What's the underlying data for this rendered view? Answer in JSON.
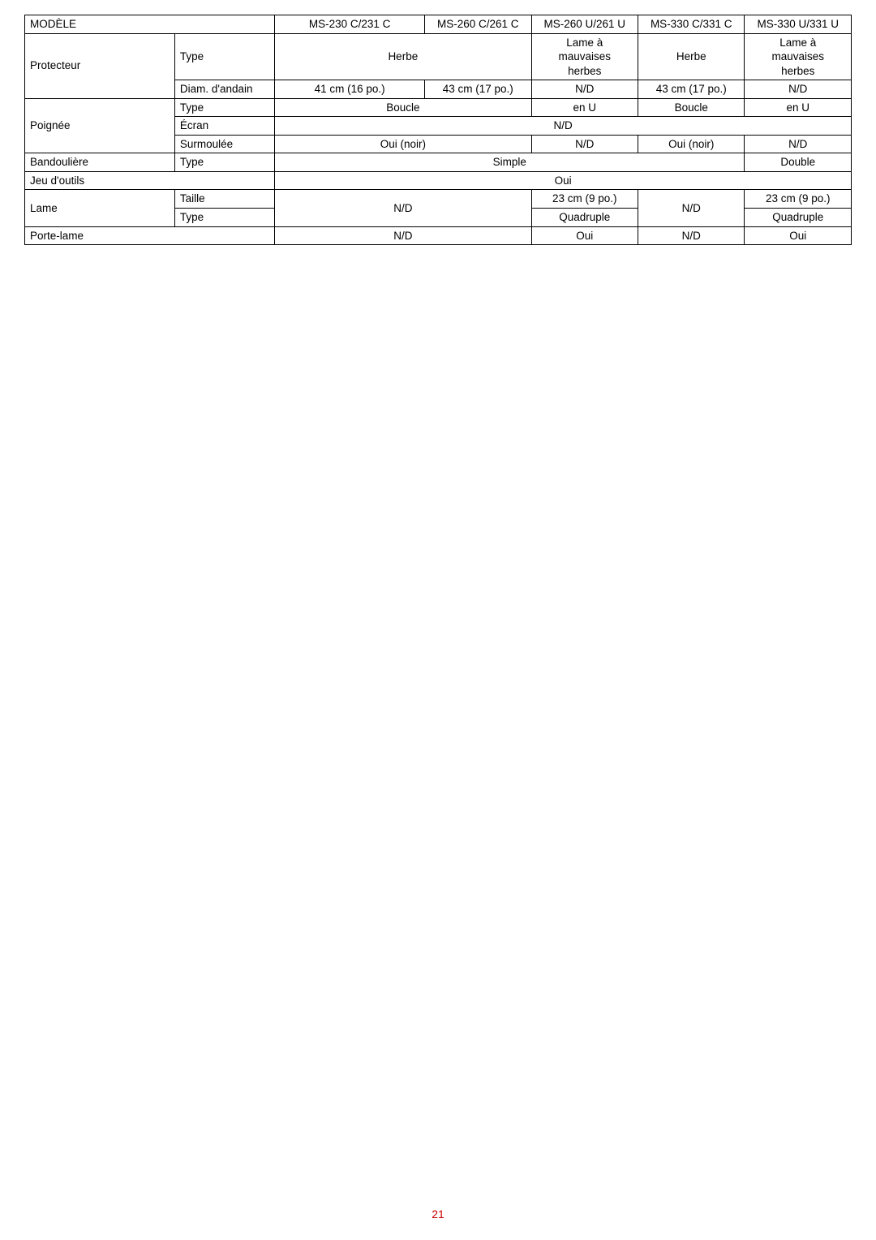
{
  "header": {
    "modele": "MODÈLE",
    "col3": "MS-230 C/231 C",
    "col4": "MS-260 C/261 C",
    "col5": "MS-260 U/261 U",
    "col6": "MS-330 C/331 C",
    "col7": "MS-330 U/331 U"
  },
  "protecteur": {
    "label": "Protecteur",
    "type_label": "Type",
    "type_herbe": "Herbe",
    "type_lame": "Lame à\nmauvaises\nherbes",
    "type_herbe2": "Herbe",
    "type_lame2": "Lame à\nmauvaises\nherbes",
    "diam_label": "Diam. d'andain",
    "diam_c3": "41 cm (16 po.)",
    "diam_c4": "43 cm (17 po.)",
    "diam_c5": "N/D",
    "diam_c6": "43 cm (17 po.)",
    "diam_c7": "N/D"
  },
  "poignee": {
    "label": "Poignée",
    "type_label": "Type",
    "type_boucle": "Boucle",
    "type_enU": "en U",
    "type_boucle2": "Boucle",
    "type_enU2": "en U",
    "ecran_label": "Écran",
    "ecran_val": "N/D",
    "surmoulee_label": "Surmoulée",
    "surmoulee_oui": "Oui (noir)",
    "surmoulee_nd": "N/D",
    "surmoulee_oui2": "Oui (noir)",
    "surmoulee_nd2": "N/D"
  },
  "bandouliere": {
    "label": "Bandoulière",
    "type_label": "Type",
    "simple": "Simple",
    "double": "Double"
  },
  "jeu": {
    "label": "Jeu d'outils",
    "val": "Oui"
  },
  "lame": {
    "label": "Lame",
    "taille_label": "Taille",
    "nd": "N/D",
    "taille_c5": "23 cm (9 po.)",
    "nd2": "N/D",
    "taille_c7": "23 cm (9 po.)",
    "type_label": "Type",
    "type_c5": "Quadruple",
    "type_c7": "Quadruple"
  },
  "portelame": {
    "label": "Porte-lame",
    "nd": "N/D",
    "oui": "Oui",
    "nd2": "N/D",
    "oui2": "Oui"
  },
  "pagenum": "21",
  "style": {
    "font_family": "Arial, Helvetica, sans-serif",
    "font_size_pt": 10,
    "border_color": "#000000",
    "text_color": "#000000",
    "background_color": "#ffffff",
    "pagenum_color": "#cc0000"
  }
}
